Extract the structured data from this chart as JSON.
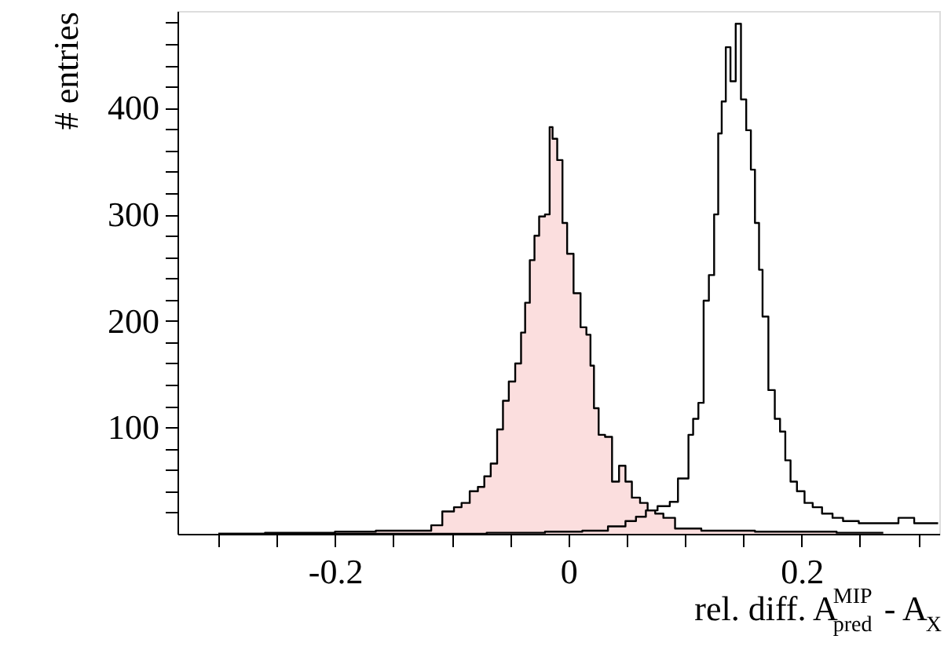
{
  "chart_data": {
    "type": "step",
    "xlabel": "rel. diff. A$^{MIP}$$_{pred}$ - A$_{X}$",
    "ylabel": "# entries",
    "xlim": [
      -0.335,
      0.318
    ],
    "ylim": [
      0,
      491
    ],
    "xticks": [
      {
        "value": -0.3,
        "label": null
      },
      {
        "value": -0.25,
        "label": null
      },
      -0.2,
      {
        "value": -0.15,
        "label": null
      },
      {
        "value": -0.1,
        "label": null
      },
      {
        "value": -0.05,
        "label": null
      },
      0,
      {
        "value": 0.05,
        "label": null
      },
      {
        "value": 0.1,
        "label": null
      },
      {
        "value": 0.15,
        "label": null
      },
      0.2,
      {
        "value": 0.25,
        "label": null
      },
      {
        "value": 0.3,
        "label": null
      }
    ],
    "yticks": [
      {
        "value": 20,
        "label": null
      },
      {
        "value": 40,
        "label": null
      },
      {
        "value": 60,
        "label": null
      },
      {
        "value": 80,
        "label": null
      },
      100,
      {
        "value": 120,
        "label": null
      },
      {
        "value": 140,
        "label": null
      },
      {
        "value": 160,
        "label": null
      },
      {
        "value": 180,
        "label": null
      },
      200,
      {
        "value": 220,
        "label": null
      },
      {
        "value": 240,
        "label": null
      },
      {
        "value": 260,
        "label": null
      },
      {
        "value": 280,
        "label": null
      },
      300,
      {
        "value": 320,
        "label": null
      },
      {
        "value": 340,
        "label": null
      },
      {
        "value": 360,
        "label": null
      },
      {
        "value": 380,
        "label": null
      },
      400,
      {
        "value": 420,
        "label": null
      },
      {
        "value": 440,
        "label": null
      },
      {
        "value": 460,
        "label": null
      },
      {
        "value": 480,
        "label": null
      }
    ],
    "grid": false,
    "series": [
      {
        "type": "area",
        "color": "#f4a0a0",
        "x": [
          -0.3,
          -0.22,
          -0.18,
          -0.15,
          -0.12,
          -0.115,
          -0.101,
          -0.095,
          -0.088,
          -0.081,
          -0.074,
          -0.07,
          -0.063,
          -0.059,
          -0.053,
          -0.049,
          -0.042,
          -0.039,
          -0.035,
          -0.031,
          -0.027,
          -0.023,
          -0.017,
          -0.015,
          -0.012,
          -0.007,
          -0.003,
          0.001,
          0.008,
          0.013,
          0.018,
          0.02,
          0.024,
          0.028,
          0.035,
          0.04,
          0.047,
          0.051,
          0.058,
          0.065,
          0.071,
          0.078,
          0.085,
          0.098,
          0.13,
          0.19,
          0.27
        ],
        "values": [
          0,
          1,
          2,
          3,
          3,
          8,
          21,
          25,
          29,
          40,
          44,
          54,
          66,
          98,
          125,
          143,
          160,
          189,
          217,
          257,
          280,
          298,
          300,
          382,
          371,
          351,
          292,
          263,
          226,
          194,
          187,
          158,
          118,
          93,
          91,
          49,
          64,
          49,
          34,
          29,
          22,
          19,
          15,
          5,
          3,
          2,
          1
        ]
      },
      {
        "color": "#000000",
        "x": [
          -0.3,
          -0.1,
          -0.04,
          0.0,
          0.024,
          0.044,
          0.054,
          0.062,
          0.071,
          0.082,
          0.092,
          0.096,
          0.101,
          0.105,
          0.109,
          0.114,
          0.118,
          0.123,
          0.127,
          0.13,
          0.133,
          0.137,
          0.141,
          0.146,
          0.15,
          0.155,
          0.158,
          0.162,
          0.165,
          0.168,
          0.175,
          0.179,
          0.184,
          0.188,
          0.193,
          0.199,
          0.206,
          0.213,
          0.222,
          0.231,
          0.24,
          0.258,
          0.276,
          0.29,
          0.303,
          0.317
        ],
        "values": [
          0,
          0,
          1,
          2,
          3,
          7,
          12,
          16,
          22,
          26,
          30,
          52,
          52,
          93,
          108,
          123,
          219,
          243,
          300,
          376,
          406,
          457,
          425,
          479,
          408,
          379,
          342,
          292,
          248,
          204,
          135,
          108,
          96,
          69,
          49,
          40,
          29,
          25,
          19,
          15,
          12,
          10,
          10,
          15,
          10,
          10
        ]
      }
    ]
  }
}
